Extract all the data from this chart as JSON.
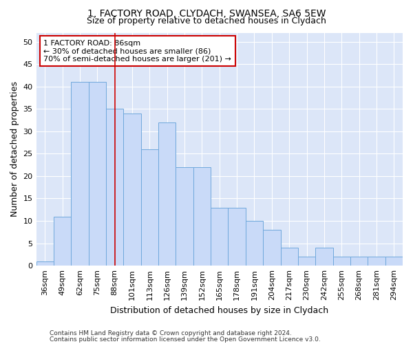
{
  "title1": "1, FACTORY ROAD, CLYDACH, SWANSEA, SA6 5EW",
  "title2": "Size of property relative to detached houses in Clydach",
  "xlabel": "Distribution of detached houses by size in Clydach",
  "ylabel": "Number of detached properties",
  "categories": [
    "36sqm",
    "49sqm",
    "62sqm",
    "75sqm",
    "88sqm",
    "101sqm",
    "113sqm",
    "126sqm",
    "139sqm",
    "152sqm",
    "165sqm",
    "178sqm",
    "191sqm",
    "204sqm",
    "217sqm",
    "230sqm",
    "242sqm",
    "255sqm",
    "268sqm",
    "281sqm",
    "294sqm"
  ],
  "values": [
    1,
    11,
    41,
    41,
    35,
    34,
    26,
    32,
    22,
    22,
    13,
    13,
    10,
    8,
    4,
    2,
    4,
    2,
    2,
    2,
    2
  ],
  "bar_color": "#c9daf8",
  "bar_edge_color": "#6fa8dc",
  "background_color": "#dce6f8",
  "vline_x": 4,
  "vline_color": "#cc0000",
  "annotation_text": "1 FACTORY ROAD: 86sqm\n← 30% of detached houses are smaller (86)\n70% of semi-detached houses are larger (201) →",
  "annotation_box_color": "white",
  "annotation_box_edge_color": "#cc0000",
  "ylim": [
    0,
    52
  ],
  "yticks": [
    0,
    5,
    10,
    15,
    20,
    25,
    30,
    35,
    40,
    45,
    50
  ],
  "footer1": "Contains HM Land Registry data © Crown copyright and database right 2024.",
  "footer2": "Contains public sector information licensed under the Open Government Licence v3.0.",
  "title1_fontsize": 10,
  "title2_fontsize": 9,
  "xlabel_fontsize": 9,
  "ylabel_fontsize": 9,
  "tick_fontsize": 8,
  "annotation_fontsize": 8,
  "footer_fontsize": 6.5
}
